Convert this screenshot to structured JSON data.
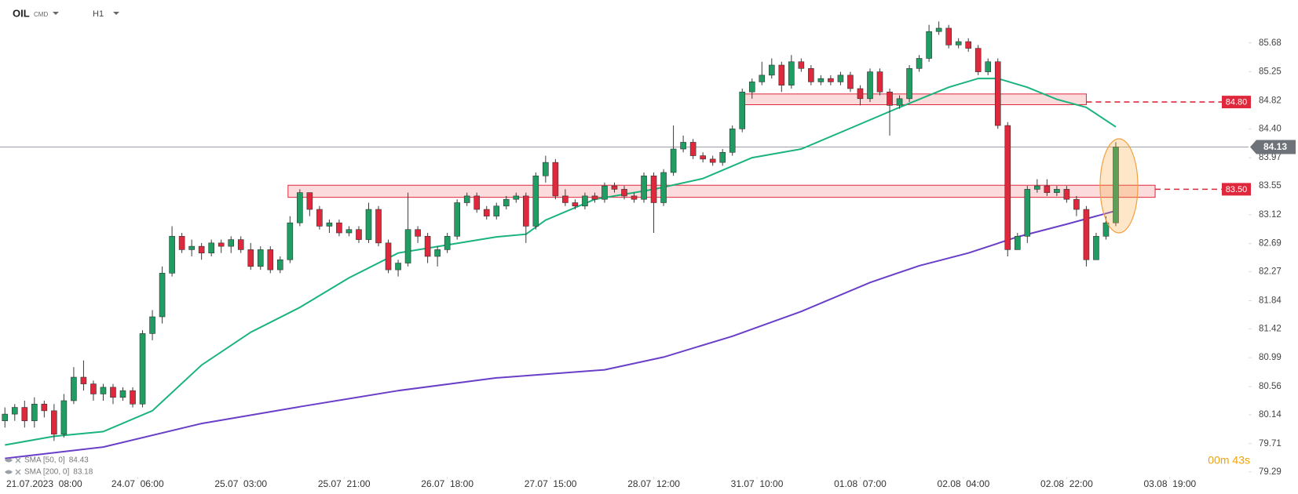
{
  "chart_data": {
    "type": "candlestick",
    "symbol": "OIL",
    "market": "CMD",
    "timeframe": "H1",
    "timer": "00m 43s",
    "up_color": "#1f9d63",
    "down_color": "#e0283c",
    "xlim": [
      -0.5,
      126.5
    ],
    "ylim": [
      79.24,
      86.32
    ],
    "yticks": [
      79.29,
      79.71,
      80.14,
      80.56,
      80.99,
      81.42,
      81.84,
      82.27,
      82.69,
      83.12,
      83.55,
      83.97,
      {
        "value": 84.4,
        "label": "84.40"
      },
      84.82,
      85.25,
      85.68
    ],
    "xticks": [
      {
        "value": 4,
        "label": "21.07.2023  08:00"
      },
      {
        "value": 13.5,
        "label": "24.07  06:00"
      },
      {
        "value": 24,
        "label": "25.07  03:00"
      },
      {
        "value": 34.5,
        "label": "25.07  21:00"
      },
      {
        "value": 45,
        "label": "26.07  18:00"
      },
      {
        "value": 55.5,
        "label": "27.07  15:00"
      },
      {
        "value": 66,
        "label": "28.07  12:00"
      },
      {
        "value": 76.5,
        "label": "31.07  10:00"
      },
      {
        "value": 87,
        "label": "01.08  07:00"
      },
      {
        "value": 97.5,
        "label": "02.08  04:00"
      },
      {
        "value": 108,
        "label": "02.08  22:00"
      },
      {
        "value": 118.5,
        "label": "03.08  19:00"
      }
    ],
    "open": [
      80.05,
      80.15,
      80.25,
      80.05,
      80.3,
      80.2,
      79.85,
      80.35,
      80.7,
      80.6,
      80.45,
      80.55,
      80.4,
      80.5,
      80.3,
      81.35,
      81.6,
      82.25,
      82.8,
      82.6,
      82.65,
      82.55,
      82.7,
      82.65,
      82.75,
      82.6,
      82.35,
      82.6,
      82.3,
      82.45,
      83.0,
      83.45,
      83.2,
      82.95,
      83.0,
      82.85,
      82.9,
      82.75,
      83.2,
      82.7,
      82.3,
      82.4,
      82.9,
      82.8,
      82.5,
      82.6,
      82.8,
      83.3,
      83.4,
      83.2,
      83.1,
      83.25,
      83.35,
      83.4,
      82.95,
      83.7,
      83.9,
      83.4,
      83.3,
      83.25,
      83.4,
      83.35,
      83.55,
      83.5,
      83.4,
      83.35,
      83.7,
      83.3,
      83.75,
      84.1,
      84.2,
      84.0,
      83.95,
      83.9,
      84.05,
      84.4,
      84.95,
      85.1,
      85.2,
      85.35,
      85.05,
      85.4,
      85.3,
      85.1,
      85.15,
      85.1,
      85.2,
      85.0,
      84.85,
      85.25,
      84.95,
      84.75,
      84.85,
      85.3,
      85.45,
      85.85,
      85.9,
      85.65,
      85.7,
      85.6,
      85.25,
      85.4,
      84.45,
      82.6,
      82.8,
      83.5,
      83.55,
      83.45,
      83.5,
      83.35,
      83.2,
      82.45,
      82.8,
      83.0
    ],
    "high": [
      80.25,
      80.3,
      80.35,
      80.4,
      80.35,
      80.3,
      80.45,
      80.85,
      80.95,
      80.65,
      80.6,
      80.6,
      80.55,
      80.55,
      81.4,
      81.7,
      82.35,
      82.95,
      82.85,
      82.75,
      82.7,
      82.75,
      82.75,
      82.8,
      82.8,
      82.7,
      82.65,
      82.65,
      82.5,
      83.1,
      83.5,
      83.45,
      83.25,
      83.05,
      83.05,
      82.95,
      82.95,
      83.3,
      83.25,
      82.75,
      82.45,
      83.45,
      82.95,
      82.85,
      82.65,
      82.85,
      83.35,
      83.45,
      83.45,
      83.25,
      83.3,
      83.4,
      83.45,
      83.45,
      83.75,
      84.0,
      83.95,
      83.5,
      83.35,
      83.45,
      83.45,
      83.6,
      83.6,
      83.55,
      83.45,
      83.75,
      83.75,
      83.8,
      84.45,
      84.3,
      84.25,
      84.05,
      84.0,
      84.1,
      84.45,
      85.0,
      85.15,
      85.4,
      85.45,
      85.4,
      85.5,
      85.45,
      85.35,
      85.2,
      85.2,
      85.25,
      85.25,
      85.05,
      85.3,
      85.3,
      85.0,
      84.9,
      85.35,
      85.5,
      85.95,
      86.0,
      85.95,
      85.75,
      85.75,
      85.65,
      85.45,
      85.45,
      84.5,
      82.85,
      83.55,
      83.65,
      83.65,
      83.55,
      83.55,
      83.4,
      83.25,
      82.85,
      83.1,
      84.2
    ],
    "low": [
      79.95,
      80.05,
      79.95,
      79.95,
      80.1,
      79.75,
      79.8,
      80.3,
      80.5,
      80.35,
      80.35,
      80.3,
      80.35,
      80.25,
      80.25,
      81.25,
      81.5,
      82.2,
      82.55,
      82.5,
      82.45,
      82.5,
      82.55,
      82.55,
      82.55,
      82.3,
      82.3,
      82.25,
      82.25,
      82.4,
      82.95,
      83.1,
      82.9,
      82.85,
      82.8,
      82.8,
      82.7,
      82.7,
      82.65,
      82.25,
      82.2,
      82.35,
      82.7,
      82.4,
      82.35,
      82.55,
      82.75,
      83.25,
      83.15,
      83.05,
      83.05,
      83.2,
      83.3,
      82.7,
      82.9,
      83.6,
      83.35,
      83.25,
      83.2,
      83.2,
      83.3,
      83.3,
      83.45,
      83.35,
      83.3,
      83.3,
      82.85,
      83.25,
      83.7,
      84.05,
      83.95,
      83.9,
      83.85,
      83.85,
      84.0,
      84.35,
      84.85,
      85.05,
      85.15,
      84.95,
      85.0,
      85.25,
      85.05,
      85.05,
      85.05,
      85.05,
      84.95,
      84.75,
      84.8,
      84.9,
      84.3,
      84.7,
      84.8,
      85.25,
      85.4,
      85.8,
      85.6,
      85.6,
      85.55,
      85.2,
      85.2,
      84.4,
      82.5,
      82.6,
      82.7,
      83.45,
      83.4,
      83.4,
      83.3,
      83.1,
      82.35,
      82.45,
      82.75,
      82.95
    ],
    "close": [
      80.15,
      80.25,
      80.05,
      80.3,
      80.2,
      79.85,
      80.35,
      80.7,
      80.6,
      80.45,
      80.55,
      80.4,
      80.5,
      80.3,
      81.35,
      81.6,
      82.25,
      82.8,
      82.6,
      82.65,
      82.55,
      82.7,
      82.65,
      82.75,
      82.6,
      82.35,
      82.6,
      82.3,
      82.45,
      83.0,
      83.45,
      83.2,
      82.95,
      83.0,
      82.85,
      82.9,
      82.75,
      83.2,
      82.7,
      82.3,
      82.4,
      82.9,
      82.8,
      82.5,
      82.6,
      82.8,
      83.3,
      83.4,
      83.2,
      83.1,
      83.25,
      83.35,
      83.4,
      82.95,
      83.7,
      83.9,
      83.4,
      83.3,
      83.25,
      83.4,
      83.35,
      83.55,
      83.5,
      83.4,
      83.35,
      83.7,
      83.3,
      83.75,
      84.1,
      84.2,
      84.0,
      83.95,
      83.9,
      84.05,
      84.4,
      84.95,
      85.1,
      85.2,
      85.35,
      85.05,
      85.4,
      85.3,
      85.1,
      85.15,
      85.1,
      85.2,
      85.0,
      84.85,
      85.25,
      84.95,
      84.75,
      84.85,
      85.3,
      85.45,
      85.85,
      85.9,
      85.65,
      85.7,
      85.6,
      85.25,
      85.4,
      84.45,
      82.6,
      82.8,
      83.5,
      83.55,
      83.45,
      83.5,
      83.35,
      83.2,
      82.45,
      82.8,
      83.0,
      84.13
    ],
    "indicators": [
      {
        "name": "SMA [50, 0]",
        "last": 84.43,
        "color": "#19b37c",
        "x": [
          0,
          5,
          10,
          15,
          20,
          25,
          30,
          35,
          40,
          45,
          50,
          53,
          55,
          60,
          66,
          71,
          76,
          81,
          86,
          91,
          96,
          99,
          101,
          104,
          107,
          110,
          113
        ],
        "values": [
          79.69,
          79.82,
          79.89,
          80.2,
          80.88,
          81.37,
          81.74,
          82.18,
          82.55,
          82.67,
          82.79,
          82.83,
          83.04,
          83.35,
          83.5,
          83.66,
          83.97,
          84.1,
          84.41,
          84.72,
          85.02,
          85.15,
          85.15,
          85.02,
          84.84,
          84.72,
          84.43
        ]
      },
      {
        "name": "SMA [200, 0]",
        "last": 83.18,
        "color": "#6a3fc8",
        "x": [
          0,
          10,
          20,
          30,
          40,
          50,
          61,
          67,
          74,
          81,
          88,
          93,
          98,
          103,
          108,
          113
        ],
        "values": [
          79.49,
          79.66,
          80.01,
          80.26,
          80.5,
          80.69,
          80.81,
          81.0,
          81.31,
          81.68,
          82.11,
          82.36,
          82.55,
          82.79,
          82.98,
          83.18
        ]
      }
    ],
    "levels": [
      {
        "value": 84.8,
        "label": "84.80",
        "zone": {
          "low": 84.76,
          "high": 84.92,
          "start": 75,
          "end": 110
        }
      },
      {
        "value": 83.5,
        "label": "83.50",
        "zone": {
          "low": 83.38,
          "high": 83.56,
          "start": 28.8,
          "end": 117
        }
      }
    ],
    "level_color": "#e0283c",
    "current_price": 84.13
  }
}
